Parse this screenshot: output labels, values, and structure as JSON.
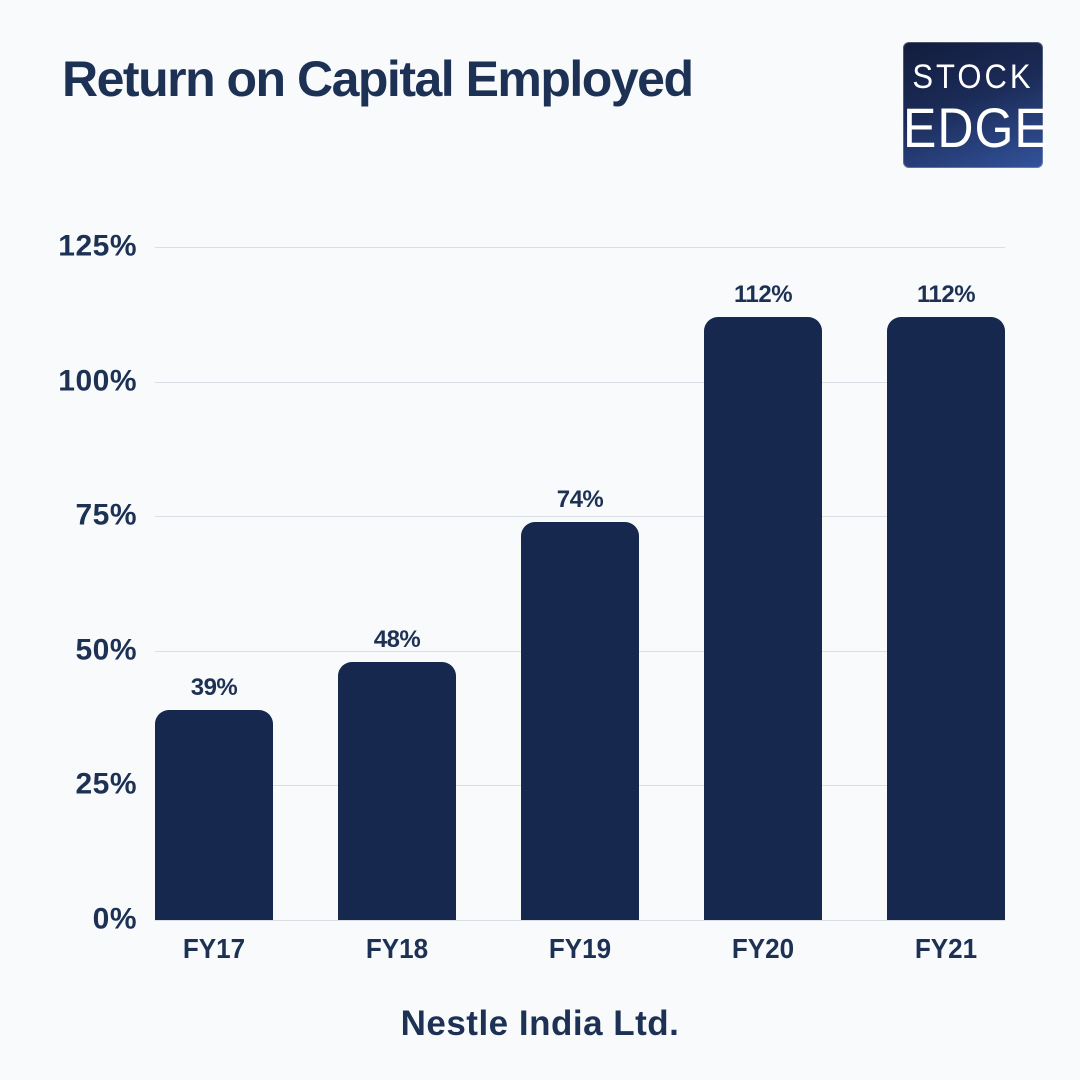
{
  "header": {
    "title": "Return on Capital Employed",
    "logo": {
      "line1": "STOCK",
      "line2": "EDGE"
    }
  },
  "footer": {
    "company": "Nestle India Ltd."
  },
  "colors": {
    "background": "#f8fafb",
    "bar_navy": "#16284e",
    "text_navy": "#1d3154",
    "gridline": "#d9dee4",
    "logo_gradient_top": "#121c3c",
    "logo_gradient_bottom": "#33539c",
    "logo_text": "#ffffff"
  },
  "chart_data": {
    "type": "bar",
    "title": "Return on Capital Employed",
    "categories": [
      "FY17",
      "FY18",
      "FY19",
      "FY20",
      "FY21"
    ],
    "values": [
      39,
      48,
      74,
      112,
      112
    ],
    "data_labels": [
      "39%",
      "48%",
      "74%",
      "112%",
      "112%"
    ],
    "yticks": [
      {
        "value": 0,
        "label": "0%"
      },
      {
        "value": 25,
        "label": "25%"
      },
      {
        "value": 50,
        "label": "50%"
      },
      {
        "value": 75,
        "label": "75%"
      },
      {
        "value": 100,
        "label": "100%"
      },
      {
        "value": 125,
        "label": "125%"
      }
    ],
    "ylim": [
      0,
      125
    ],
    "xlabel": "Nestle India Ltd.",
    "ylabel": "",
    "grid": "horizontal",
    "legend": "none",
    "bar_color": "#16284e"
  }
}
